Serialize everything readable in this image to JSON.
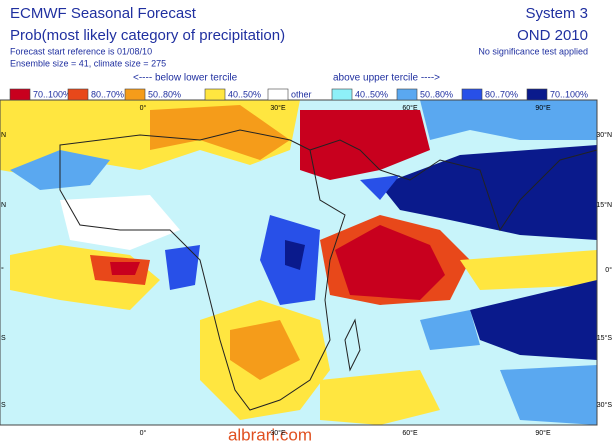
{
  "header": {
    "title": "ECMWF Seasonal Forecast",
    "subtitle": "Prob(most likely category of precipitation)",
    "start_ref": "Forecast start reference is 01/08/10",
    "ensemble": "Ensemble size = 41, climate size = 275",
    "system": "System 3",
    "period": "OND 2010",
    "note": "No significance test applied"
  },
  "legend": {
    "below_label": "<---- below lower tercile",
    "above_label": "above upper tercile ---->",
    "items": [
      {
        "label": "70..100%",
        "color": "#c8001e"
      },
      {
        "label": "80..70%",
        "color": "#e8481a"
      },
      {
        "label": "50..80%",
        "color": "#f59c1a"
      },
      {
        "label": "40..50%",
        "color": "#ffe640"
      },
      {
        "label": "other",
        "color": "#ffffff"
      },
      {
        "label": "40..50%",
        "color": "#8ef0f8"
      },
      {
        "label": "50..80%",
        "color": "#5aa8f0"
      },
      {
        "label": "80..70%",
        "color": "#2850e8"
      },
      {
        "label": "70..100%",
        "color": "#0a1a8c"
      }
    ]
  },
  "map": {
    "top_labels": [
      "0°",
      "30°E",
      "60°E",
      "90°E"
    ],
    "bottom_labels": [
      "0°",
      "30°E",
      "60°E",
      "90°E"
    ],
    "left_labels": [
      "N",
      "N",
      "°",
      "S",
      "S"
    ],
    "right_labels": [
      "30°N",
      "15°N",
      "0°",
      "15°S",
      "30°S"
    ]
  },
  "watermark": "albrari.com"
}
